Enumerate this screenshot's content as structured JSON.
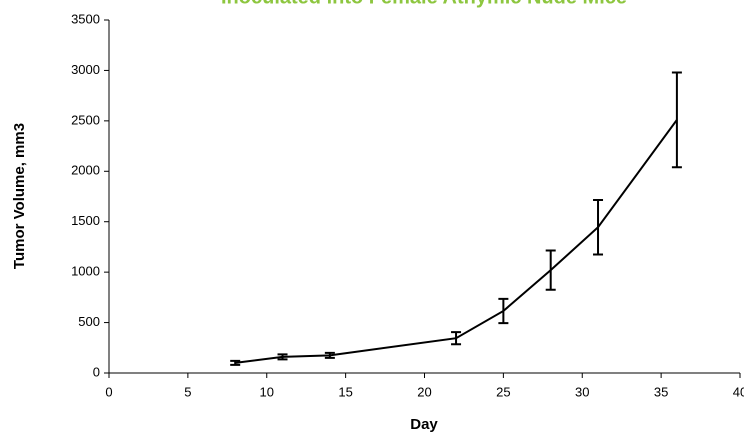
{
  "chart_data": {
    "type": "line",
    "title": "Inoculated into Female Athymic Nude Mice",
    "title_color": "#8dc63f",
    "x_label": "Day",
    "y_label": "Tumor Volume, mm3",
    "x": [
      8,
      11,
      14,
      22,
      25,
      28,
      31,
      36
    ],
    "values": [
      100,
      160,
      175,
      345,
      615,
      1020,
      1445,
      2510
    ],
    "errors": [
      20,
      25,
      25,
      60,
      120,
      195,
      270,
      470
    ],
    "color": "#000000",
    "xlim": [
      0,
      40
    ],
    "xticks": [
      0,
      5,
      10,
      15,
      20,
      25,
      30,
      35,
      40
    ],
    "ylim": [
      0,
      3500
    ],
    "yticks": [
      0,
      500,
      1000,
      1500,
      2000,
      2500,
      3000,
      3500
    ]
  }
}
